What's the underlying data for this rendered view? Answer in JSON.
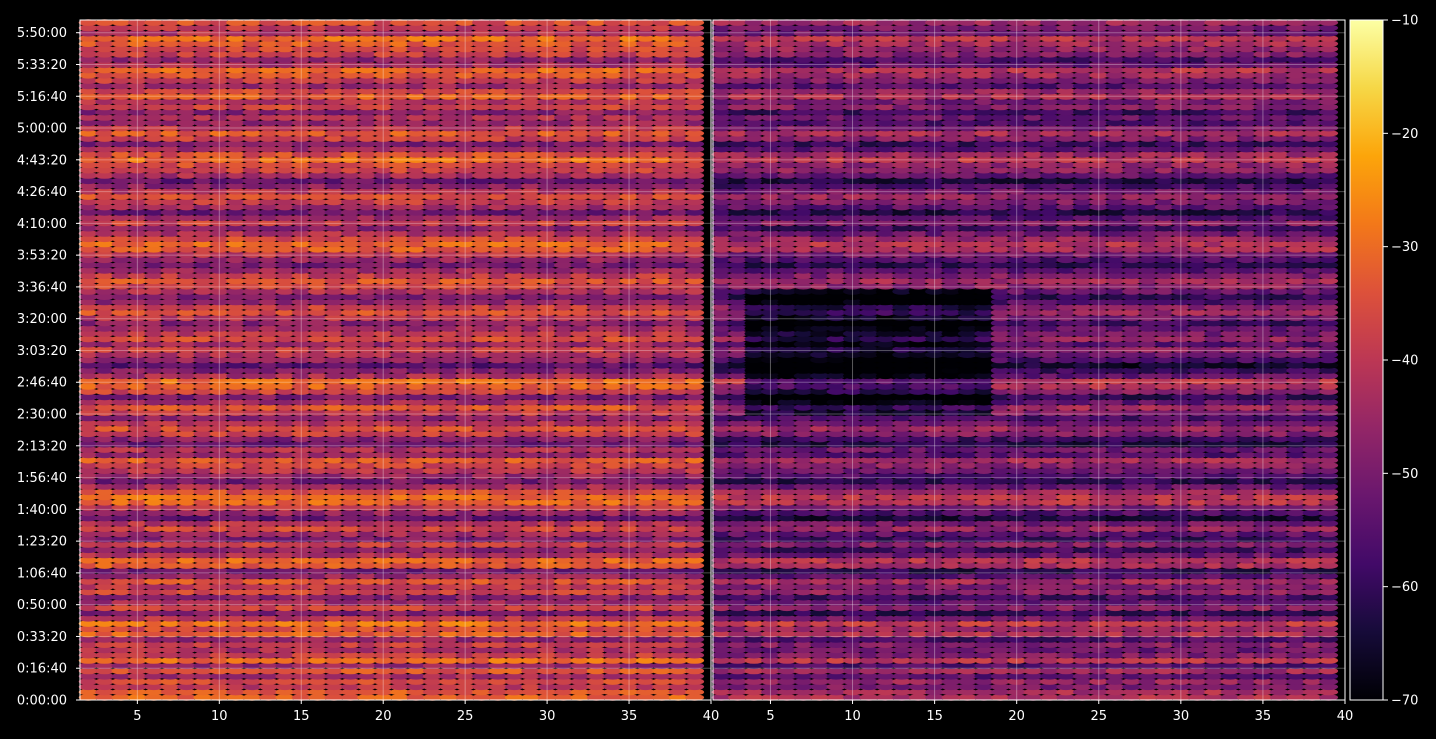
{
  "chart_data": {
    "type": "heatmap",
    "title": "",
    "colormap": "inferno",
    "background": "#000000",
    "colorbar": {
      "range": [
        -70,
        -10
      ],
      "ticks": [
        -10,
        -20,
        -30,
        -40,
        -50,
        -60,
        -70
      ],
      "tick_labels": [
        "−10",
        "−20",
        "−30",
        "−40",
        "−50",
        "−60",
        "−70"
      ]
    },
    "y_axis": {
      "range_seconds": [
        0,
        21400
      ],
      "tick_values_seconds": [
        0,
        1000,
        2000,
        3000,
        4000,
        5000,
        6000,
        7000,
        8000,
        9000,
        10000,
        11000,
        12000,
        13000,
        14000,
        15000,
        16000,
        17000,
        18000,
        19000,
        20000,
        21000
      ],
      "tick_labels": [
        "0:00:00",
        "0:16:40",
        "0:33:20",
        "0:50:00",
        "1:06:40",
        "1:23:20",
        "1:40:00",
        "1:56:40",
        "2:13:20",
        "2:30:00",
        "2:46:40",
        "3:03:20",
        "3:20:00",
        "3:36:40",
        "3:53:20",
        "4:10:00",
        "4:26:40",
        "4:43:20",
        "5:00:00",
        "5:16:40",
        "5:33:20",
        "5:50:00"
      ],
      "grid": true
    },
    "panels": [
      {
        "name": "",
        "x_range": [
          1.5,
          40
        ],
        "x_ticks": [
          5,
          10,
          15,
          20,
          25,
          30,
          35,
          40
        ],
        "x_tick_labels": [
          "5",
          "10",
          "15",
          "20",
          "25",
          "30",
          "35",
          "40"
        ],
        "bins": [
          2,
          39
        ],
        "row_levels": [
          -32,
          -33,
          -40,
          -36,
          -44,
          -34,
          -46,
          -30,
          -39,
          -42,
          -38,
          -47,
          -32,
          -35,
          -29,
          -41,
          -50,
          -37,
          -44,
          -48,
          -36,
          -40,
          -34,
          -45,
          -52,
          -33,
          -31,
          -42,
          -48,
          -38,
          -49,
          -44,
          -36,
          -41,
          -54,
          -46,
          -39,
          -31,
          -30,
          -35,
          -43,
          -51,
          -46,
          -40,
          -37,
          -33,
          -45,
          -42,
          -52,
          -48,
          -38,
          -35,
          -41,
          -47,
          -39,
          -34,
          -44,
          -50,
          -37,
          -32,
          -30,
          -43,
          -49,
          -55,
          -47,
          -42,
          -38,
          -45,
          -36,
          -40,
          -44,
          -48,
          -41,
          -35,
          -38,
          -46,
          -50,
          -42,
          -37,
          -34,
          -39,
          -45,
          -51,
          -46,
          -40,
          -33,
          -31,
          -36,
          -42,
          -48,
          -38,
          -45,
          -52,
          -44,
          -39,
          -35,
          -41,
          -47,
          -53,
          -43,
          -37,
          -36,
          -30,
          -35,
          -44,
          -49,
          -38,
          -33,
          -40,
          -46,
          -42,
          -48,
          -37,
          -41,
          -32,
          -36,
          -45,
          -39,
          -34,
          -31,
          -43,
          -47,
          -38,
          -36,
          -33,
          -30,
          -42,
          -40,
          -35
        ]
      },
      {
        "name": "",
        "x_range": [
          1.5,
          40
        ],
        "x_ticks": [
          5,
          10,
          15,
          20,
          25,
          30,
          35,
          40
        ],
        "x_tick_labels": [
          "5",
          "10",
          "15",
          "20",
          "25",
          "30",
          "35",
          "40"
        ],
        "bins": [
          2,
          39
        ],
        "row_levels": [
          -42,
          -43,
          -50,
          -46,
          -54,
          -44,
          -56,
          -40,
          -49,
          -52,
          -48,
          -57,
          -42,
          -45,
          -39,
          -51,
          -60,
          -47,
          -54,
          -58,
          -46,
          -50,
          -44,
          -55,
          -62,
          -43,
          -41,
          -52,
          -58,
          -48,
          -59,
          -54,
          -46,
          -51,
          -64,
          -56,
          -49,
          -41,
          -40,
          -45,
          -53,
          -61,
          -56,
          -50,
          -47,
          -43,
          -55,
          -52,
          -62,
          -58,
          -48,
          -45,
          -51,
          -57,
          -49,
          -44,
          -54,
          -60,
          -47,
          -42,
          -40,
          -53,
          -59,
          -65,
          -57,
          -52,
          -48,
          -55,
          -46,
          -50,
          -54,
          -58,
          -51,
          -45,
          -48,
          -56,
          -60,
          -52,
          -47,
          -44,
          -49,
          -55,
          -61,
          -56,
          -50,
          -43,
          -41,
          -46,
          -52,
          -58,
          -48,
          -55,
          -62,
          -54,
          -49,
          -45,
          -51,
          -57,
          -63,
          -53,
          -47,
          -46,
          -40,
          -45,
          -54,
          -59,
          -48,
          -43,
          -50,
          -56,
          -52,
          -58,
          -47,
          -51,
          -42,
          -46,
          -55,
          -49,
          -44,
          -41,
          -53,
          -57,
          -48,
          -46,
          -43,
          -40,
          -52,
          -50,
          -45
        ],
        "dark_region_x": [
          4,
          18
        ],
        "dark_region_note_seconds": [
          9000,
          13000
        ]
      }
    ]
  }
}
